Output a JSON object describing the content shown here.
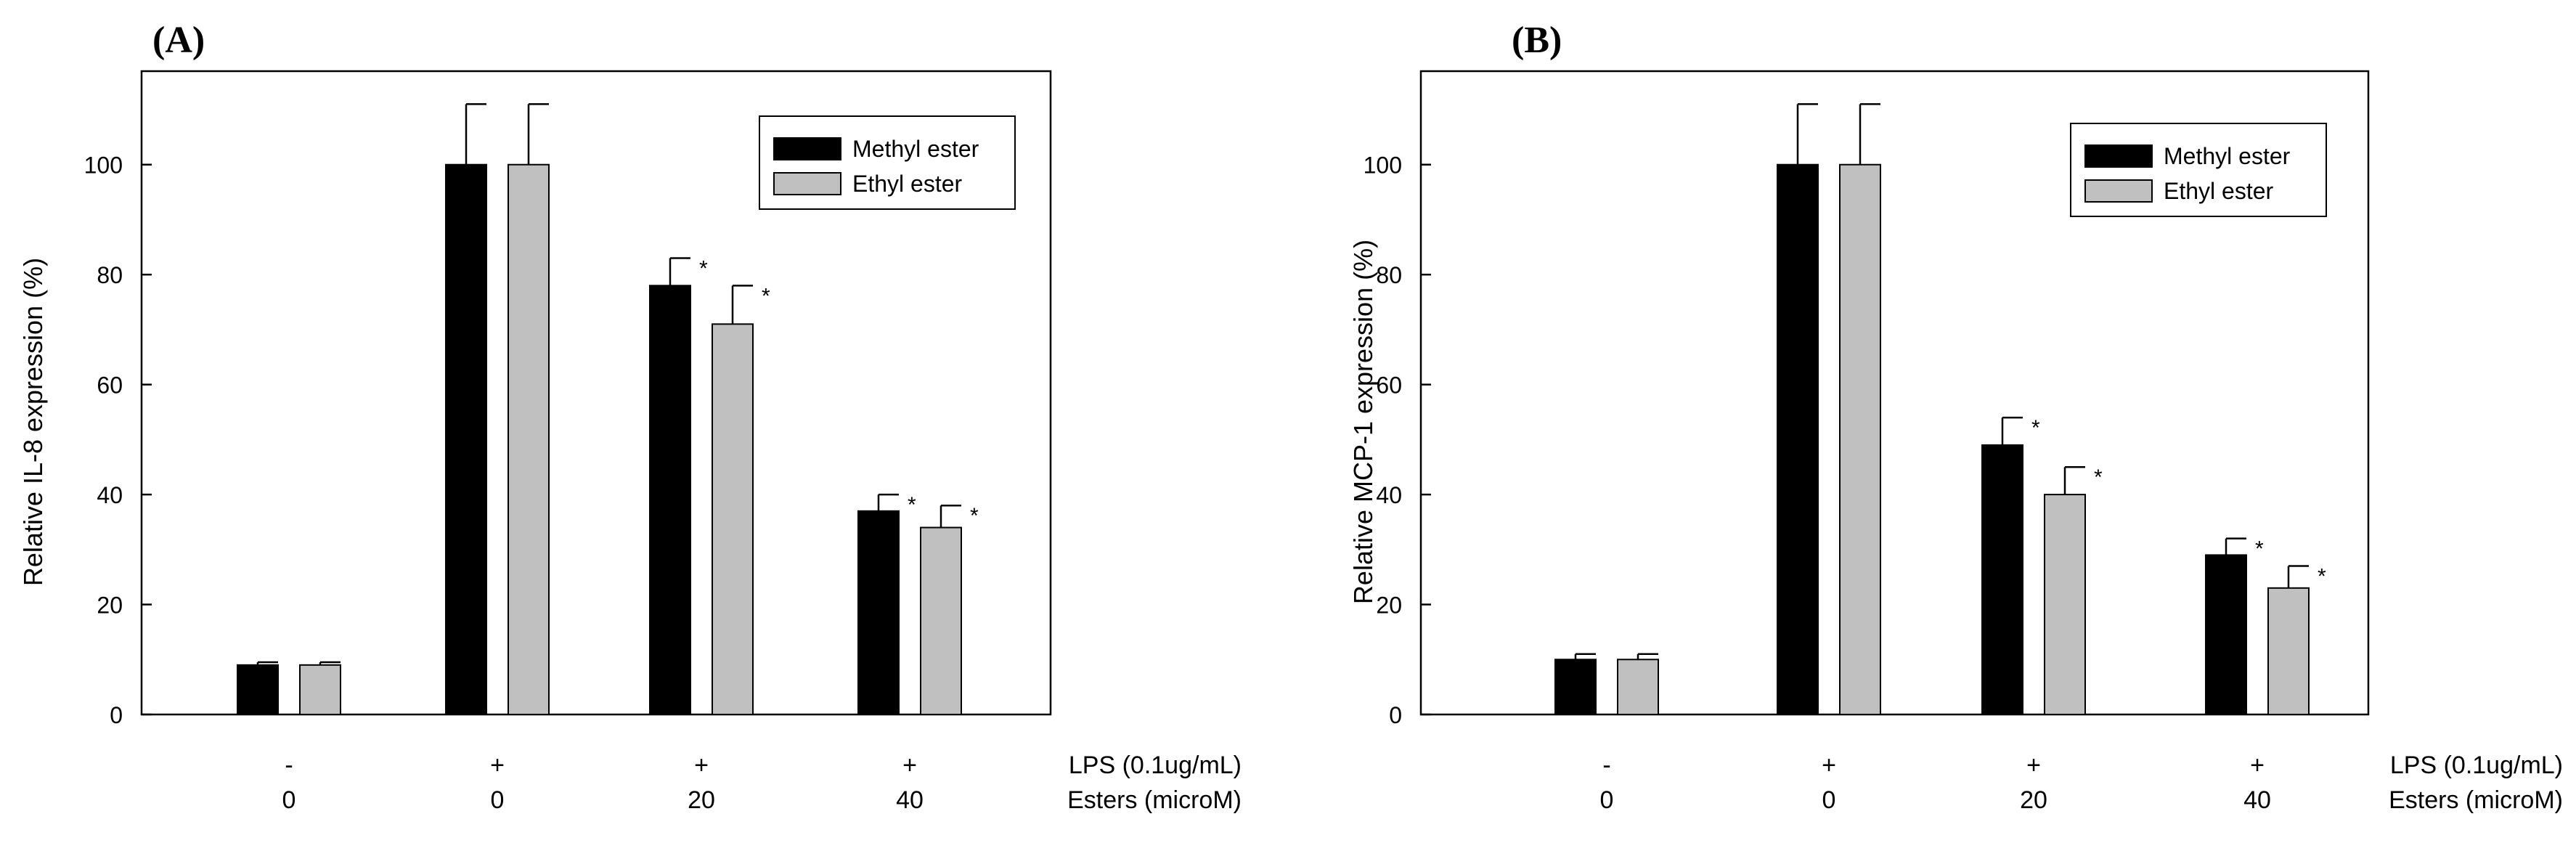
{
  "colors": {
    "methyl": "#000000",
    "ethyl": "#c0c0c0",
    "axis": "#000000",
    "background": "#ffffff"
  },
  "row_labels": [
    "LPS (0.1ug/mL)",
    "Esters (microM)"
  ],
  "chart_data": [
    {
      "type": "bar",
      "panel_label": "(A)",
      "ylabel": "Relative IL-8 expression (%)",
      "xlabel": "",
      "ylim": [
        0,
        117
      ],
      "yticks": [
        "0",
        "20",
        "40",
        "60",
        "80",
        "100"
      ],
      "categories": [
        {
          "lps": "-",
          "esters": "0"
        },
        {
          "lps": "+",
          "esters": "0"
        },
        {
          "lps": "+",
          "esters": "20"
        },
        {
          "lps": "+",
          "esters": "40"
        }
      ],
      "series": [
        {
          "name": "Methyl ester",
          "values": [
            9,
            100,
            78,
            37
          ],
          "errors": [
            0.5,
            11,
            5,
            3
          ],
          "significant": [
            "",
            "",
            "*",
            "*"
          ]
        },
        {
          "name": "Ethyl ester",
          "values": [
            9,
            100,
            71,
            34
          ],
          "errors": [
            0.5,
            11,
            7,
            4
          ],
          "significant": [
            "",
            "",
            "*",
            "*"
          ]
        }
      ],
      "legend": "top-right"
    },
    {
      "type": "bar",
      "panel_label": "(B)",
      "ylabel": "Relative MCP-1 expression (%)",
      "xlabel": "",
      "ylim": [
        0,
        117
      ],
      "yticks": [
        "0",
        "20",
        "40",
        "60",
        "80",
        "100"
      ],
      "categories": [
        {
          "lps": "-",
          "esters": "0"
        },
        {
          "lps": "+",
          "esters": "0"
        },
        {
          "lps": "+",
          "esters": "20"
        },
        {
          "lps": "+",
          "esters": "40"
        }
      ],
      "series": [
        {
          "name": "Methyl ester",
          "values": [
            10,
            100,
            49,
            29
          ],
          "errors": [
            1,
            11,
            5,
            3
          ],
          "significant": [
            "",
            "",
            "*",
            "*"
          ]
        },
        {
          "name": "Ethyl ester",
          "values": [
            10,
            100,
            40,
            23
          ],
          "errors": [
            1,
            11,
            5,
            4
          ],
          "significant": [
            "",
            "",
            "*",
            "*"
          ]
        }
      ],
      "legend": "top-right"
    }
  ]
}
